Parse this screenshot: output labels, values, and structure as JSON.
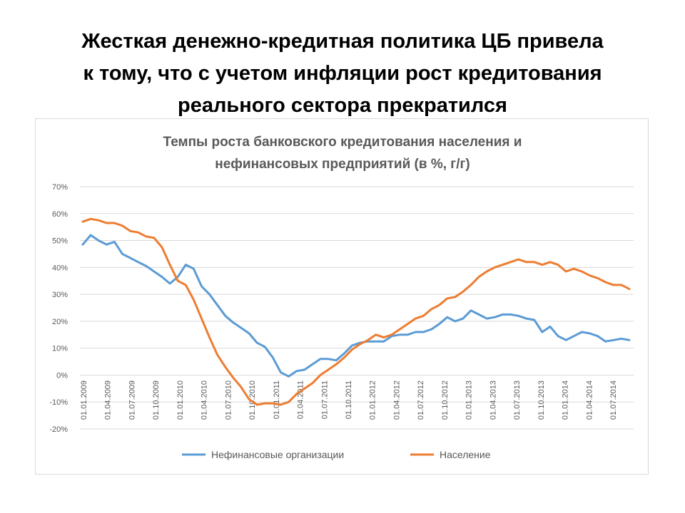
{
  "slide": {
    "title_lines": [
      "Жесткая денежно-кредитная политика ЦБ привела",
      "к тому, что с учетом инфляции рост кредитования",
      "реального сектора прекратился"
    ]
  },
  "chart_data": {
    "type": "line",
    "title_lines": [
      "Темпы роста банковского кредитования населения и",
      "нефинансовых предприятий (в %, г/г)"
    ],
    "ylim": [
      -20,
      70
    ],
    "y_ticks": [
      70,
      60,
      50,
      40,
      30,
      20,
      10,
      0,
      -10,
      -20
    ],
    "y_tick_labels": [
      "70%",
      "60%",
      "50%",
      "40%",
      "30%",
      "20%",
      "10%",
      "0%",
      "-10%",
      "-20%"
    ],
    "x_tick_labels": [
      "01.01.2009",
      "01.04.2009",
      "01.07.2009",
      "01.10.2009",
      "01.01.2010",
      "01.04.2010",
      "01.07.2010",
      "01.10.2010",
      "01.01.2011",
      "01.04.2011",
      "01.07.2011",
      "01.10.2011",
      "01.01.2012",
      "01.04.2012",
      "01.07.2012",
      "01.10.2012",
      "01.01.2013",
      "01.04.2013",
      "01.07.2013",
      "01.10.2013",
      "01.01.2014",
      "01.04.2014",
      "01.07.2014"
    ],
    "grid": true,
    "legend_position": "bottom",
    "series": [
      {
        "name": "Нефинансовые организации",
        "color": "#5b9bd5",
        "values": [
          48.5,
          52,
          50,
          48.5,
          49.5,
          45,
          43.5,
          42,
          40.5,
          38.5,
          36.5,
          34,
          36.5,
          41,
          39.5,
          33,
          30,
          26,
          22,
          19.5,
          17.5,
          15.5,
          12,
          10.5,
          6.5,
          1,
          -0.5,
          1.5,
          2,
          4,
          6,
          6,
          5.5,
          8,
          11,
          12,
          12.5,
          12.5,
          12.5,
          14.5,
          15,
          15,
          16,
          16,
          17,
          19,
          21.5,
          20,
          21,
          24,
          22.5,
          21,
          21.5,
          22.5,
          22.5,
          22,
          21,
          20.5,
          16,
          18,
          14.5,
          13,
          14.5,
          16,
          15.5,
          14.5,
          12.5,
          13,
          13.5,
          13
        ]
      },
      {
        "name": "Население",
        "color": "#ed7d31",
        "values": [
          57,
          58,
          57.5,
          56.5,
          56.5,
          55.5,
          53.5,
          53,
          51.5,
          51,
          47.5,
          41,
          35,
          33.5,
          28,
          21,
          14,
          7.5,
          3,
          -1,
          -4.5,
          -9,
          -11,
          -10.5,
          -10.5,
          -11,
          -10,
          -7,
          -5,
          -3,
          0,
          2,
          4,
          6.5,
          9.5,
          11.5,
          13,
          15,
          14,
          15,
          17,
          19,
          21,
          22,
          24.5,
          26,
          28.5,
          29,
          31,
          33.5,
          36.5,
          38.5,
          40,
          41,
          42,
          43,
          42,
          42,
          41,
          42,
          41,
          38.5,
          39.5,
          38.5,
          37,
          36,
          34.5,
          33.5,
          33.5,
          32
        ]
      }
    ]
  }
}
